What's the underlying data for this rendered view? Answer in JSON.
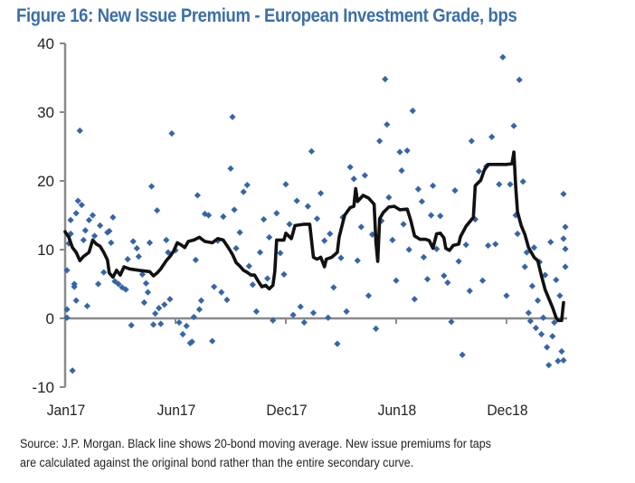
{
  "chart_data": {
    "type": "scatter",
    "title": "Figure 16: New Issue Premium - European Investment Grade, bps",
    "xlabel": "",
    "ylabel": "",
    "x_units": "months since Jan17",
    "xlim": [
      0,
      27.2
    ],
    "ylim": [
      -10,
      40
    ],
    "yticks": [
      -10,
      0,
      10,
      20,
      30,
      40
    ],
    "xticks": [
      {
        "value": 0,
        "label": "Jan17"
      },
      {
        "value": 6,
        "label": "Jun17"
      },
      {
        "value": 12,
        "label": "Dec17"
      },
      {
        "value": 18,
        "label": "Jun18"
      },
      {
        "value": 24,
        "label": "Dec18"
      }
    ],
    "grid": false,
    "legend": "none",
    "series": [
      {
        "name": "New issue premium",
        "kind": "scatter",
        "marker": "diamond",
        "color": "#3565a8",
        "points": [
          [
            0.1,
            0.1
          ],
          [
            0.1,
            1.3
          ],
          [
            0.1,
            7.0
          ],
          [
            0.2,
            10.9
          ],
          [
            0.3,
            12.3
          ],
          [
            0.3,
            14.3
          ],
          [
            0.4,
            -7.6
          ],
          [
            0.5,
            4.6
          ],
          [
            0.5,
            5.0
          ],
          [
            0.6,
            2.6
          ],
          [
            0.6,
            15.3
          ],
          [
            0.7,
            17.1
          ],
          [
            0.8,
            27.3
          ],
          [
            0.9,
            16.5
          ],
          [
            1.0,
            11.4
          ],
          [
            1.1,
            12.8
          ],
          [
            1.2,
            1.8
          ],
          [
            1.3,
            14.3
          ],
          [
            1.5,
            15.0
          ],
          [
            1.6,
            12.0
          ],
          [
            1.8,
            5.0
          ],
          [
            1.9,
            13.5
          ],
          [
            2.1,
            6.7
          ],
          [
            2.3,
            12.5
          ],
          [
            2.4,
            12.7
          ],
          [
            2.5,
            11.0
          ],
          [
            2.6,
            14.7
          ],
          [
            2.7,
            5.4
          ],
          [
            2.9,
            5.0
          ],
          [
            3.1,
            4.5
          ],
          [
            3.3,
            4.2
          ],
          [
            3.4,
            8.6
          ],
          [
            3.6,
            -1.0
          ],
          [
            3.7,
            11.2
          ],
          [
            3.9,
            10.2
          ],
          [
            4.0,
            9.0
          ],
          [
            4.2,
            6.4
          ],
          [
            4.3,
            2.3
          ],
          [
            4.4,
            5.1
          ],
          [
            4.5,
            3.8
          ],
          [
            4.6,
            11.0
          ],
          [
            4.7,
            19.2
          ],
          [
            4.8,
            -0.9
          ],
          [
            4.9,
            0.7
          ],
          [
            5.0,
            15.7
          ],
          [
            5.1,
            1.5
          ],
          [
            5.2,
            -0.8
          ],
          [
            5.4,
            2.0
          ],
          [
            5.5,
            11.4
          ],
          [
            5.6,
            9.6
          ],
          [
            5.7,
            2.8
          ],
          [
            5.8,
            26.9
          ],
          [
            6.0,
            9.9
          ],
          [
            6.2,
            -0.6
          ],
          [
            6.4,
            -2.3
          ],
          [
            6.6,
            -1.1
          ],
          [
            6.8,
            -3.6
          ],
          [
            6.9,
            -3.4
          ],
          [
            7.0,
            0.2
          ],
          [
            7.1,
            8.5
          ],
          [
            7.2,
            17.9
          ],
          [
            7.3,
            1.3
          ],
          [
            7.4,
            2.6
          ],
          [
            7.6,
            15.2
          ],
          [
            7.8,
            15.0
          ],
          [
            8.0,
            -3.3
          ],
          [
            8.1,
            4.6
          ],
          [
            8.3,
            11.3
          ],
          [
            8.5,
            3.8
          ],
          [
            8.6,
            14.8
          ],
          [
            8.8,
            2.7
          ],
          [
            9.0,
            21.8
          ],
          [
            9.1,
            29.3
          ],
          [
            9.2,
            15.8
          ],
          [
            9.3,
            10.2
          ],
          [
            9.5,
            12.5
          ],
          [
            9.7,
            18.4
          ],
          [
            9.9,
            19.4
          ],
          [
            10.0,
            7.6
          ],
          [
            10.2,
            4.9
          ],
          [
            10.4,
            1.0
          ],
          [
            10.6,
            9.6
          ],
          [
            10.8,
            14.4
          ],
          [
            11.0,
            5.8
          ],
          [
            11.1,
            11.8
          ],
          [
            11.3,
            -0.3
          ],
          [
            11.5,
            15.3
          ],
          [
            11.7,
            9.5
          ],
          [
            11.9,
            6.4
          ],
          [
            12.0,
            19.5
          ],
          [
            12.2,
            13.7
          ],
          [
            12.4,
            0.5
          ],
          [
            12.6,
            17.1
          ],
          [
            12.8,
            1.7
          ],
          [
            13.0,
            -0.6
          ],
          [
            13.2,
            16.3
          ],
          [
            13.4,
            24.3
          ],
          [
            13.5,
            0.8
          ],
          [
            13.7,
            14.5
          ],
          [
            13.9,
            18.2
          ],
          [
            14.1,
            11.3
          ],
          [
            14.3,
            0.1
          ],
          [
            14.4,
            12.3
          ],
          [
            14.6,
            4.5
          ],
          [
            14.8,
            -3.7
          ],
          [
            15.0,
            8.8
          ],
          [
            15.1,
            14.7
          ],
          [
            15.3,
            1.0
          ],
          [
            15.5,
            22.0
          ],
          [
            15.7,
            20.3
          ],
          [
            15.9,
            8.4
          ],
          [
            16.1,
            13.3
          ],
          [
            16.3,
            20.8
          ],
          [
            16.5,
            3.3
          ],
          [
            16.7,
            12.2
          ],
          [
            16.9,
            -1.5
          ],
          [
            17.1,
            25.8
          ],
          [
            17.2,
            14.2
          ],
          [
            17.4,
            34.8
          ],
          [
            17.5,
            28.2
          ],
          [
            17.6,
            17.6
          ],
          [
            17.8,
            11.4
          ],
          [
            18.0,
            5.5
          ],
          [
            18.2,
            24.2
          ],
          [
            18.3,
            21.5
          ],
          [
            18.4,
            13.7
          ],
          [
            18.6,
            24.4
          ],
          [
            18.7,
            10.0
          ],
          [
            18.9,
            30.2
          ],
          [
            19.0,
            2.8
          ],
          [
            19.2,
            18.8
          ],
          [
            19.4,
            17.0
          ],
          [
            19.5,
            8.9
          ],
          [
            19.7,
            5.7
          ],
          [
            19.9,
            15.0
          ],
          [
            20.0,
            19.3
          ],
          [
            20.2,
            10.1
          ],
          [
            20.4,
            14.9
          ],
          [
            20.6,
            6.2
          ],
          [
            20.8,
            5.2
          ],
          [
            21.0,
            -0.5
          ],
          [
            21.2,
            18.6
          ],
          [
            21.4,
            8.3
          ],
          [
            21.6,
            -5.3
          ],
          [
            21.8,
            10.7
          ],
          [
            22.0,
            4.0
          ],
          [
            22.1,
            25.8
          ],
          [
            22.3,
            14.4
          ],
          [
            22.5,
            21.4
          ],
          [
            22.7,
            5.5
          ],
          [
            22.9,
            22.1
          ],
          [
            23.0,
            10.6
          ],
          [
            23.2,
            26.4
          ],
          [
            23.4,
            10.8
          ],
          [
            23.6,
            19.5
          ],
          [
            23.8,
            38.0
          ],
          [
            24.0,
            3.3
          ],
          [
            24.2,
            19.5
          ],
          [
            24.4,
            28.0
          ],
          [
            24.5,
            15.0
          ],
          [
            24.6,
            12.3
          ],
          [
            24.7,
            34.7
          ],
          [
            24.9,
            19.9
          ],
          [
            25.0,
            7.5
          ],
          [
            25.1,
            9.6
          ],
          [
            25.2,
            0.8
          ],
          [
            25.3,
            -0.4
          ],
          [
            25.4,
            4.7
          ],
          [
            25.5,
            10.3
          ],
          [
            25.6,
            -1.4
          ],
          [
            25.7,
            2.6
          ],
          [
            25.8,
            8.2
          ],
          [
            25.9,
            -2.3
          ],
          [
            26.0,
            0.1
          ],
          [
            26.1,
            6.3
          ],
          [
            26.2,
            -4.2
          ],
          [
            26.3,
            -6.8
          ],
          [
            26.4,
            11.1
          ],
          [
            26.5,
            -2.6
          ],
          [
            26.6,
            -0.6
          ],
          [
            26.7,
            5.6
          ],
          [
            26.8,
            -6.2
          ],
          [
            26.9,
            3.3
          ],
          [
            27.0,
            -4.8
          ],
          [
            27.1,
            18.1
          ],
          [
            27.2,
            13.3
          ],
          [
            27.2,
            10.1
          ],
          [
            27.1,
            11.6
          ],
          [
            27.2,
            7.5
          ],
          [
            27.1,
            -6.1
          ]
        ]
      },
      {
        "name": "20-bond moving average",
        "kind": "line",
        "color": "#111111",
        "points": [
          [
            0.0,
            12.6
          ],
          [
            0.2,
            11.8
          ],
          [
            0.4,
            10.3
          ],
          [
            0.6,
            9.6
          ],
          [
            0.8,
            8.4
          ],
          [
            1.0,
            9.0
          ],
          [
            1.3,
            9.6
          ],
          [
            1.5,
            11.4
          ],
          [
            1.7,
            10.8
          ],
          [
            1.9,
            10.5
          ],
          [
            2.1,
            9.6
          ],
          [
            2.3,
            8.5
          ],
          [
            2.4,
            6.6
          ],
          [
            2.6,
            6.0
          ],
          [
            2.8,
            7.0
          ],
          [
            3.0,
            6.3
          ],
          [
            3.2,
            7.5
          ],
          [
            3.5,
            7.2
          ],
          [
            4.0,
            7.0
          ],
          [
            4.6,
            6.8
          ],
          [
            4.8,
            6.2
          ],
          [
            5.0,
            6.6
          ],
          [
            5.2,
            7.2
          ],
          [
            5.5,
            8.4
          ],
          [
            5.7,
            9.0
          ],
          [
            5.9,
            9.8
          ],
          [
            6.1,
            11.0
          ],
          [
            6.3,
            10.7
          ],
          [
            6.5,
            10.3
          ],
          [
            6.7,
            11.2
          ],
          [
            7.0,
            11.4
          ],
          [
            7.3,
            11.8
          ],
          [
            7.6,
            11.2
          ],
          [
            8.0,
            11.0
          ],
          [
            8.3,
            11.6
          ],
          [
            8.6,
            11.4
          ],
          [
            8.9,
            10.2
          ],
          [
            9.1,
            9.3
          ],
          [
            9.3,
            8.1
          ],
          [
            9.5,
            7.6
          ],
          [
            9.7,
            7.0
          ],
          [
            9.9,
            6.7
          ],
          [
            10.1,
            6.3
          ],
          [
            10.3,
            6.3
          ],
          [
            10.5,
            5.4
          ],
          [
            10.7,
            4.6
          ],
          [
            10.9,
            4.8
          ],
          [
            11.1,
            4.3
          ],
          [
            11.3,
            4.8
          ],
          [
            11.4,
            6.8
          ],
          [
            11.5,
            11.4
          ],
          [
            11.9,
            11.4
          ],
          [
            12.0,
            12.4
          ],
          [
            12.3,
            11.6
          ],
          [
            12.5,
            13.5
          ],
          [
            13.0,
            13.7
          ],
          [
            13.3,
            13.7
          ],
          [
            13.5,
            8.9
          ],
          [
            13.7,
            8.6
          ],
          [
            13.9,
            8.9
          ],
          [
            14.1,
            7.5
          ],
          [
            14.2,
            8.6
          ],
          [
            14.5,
            8.9
          ],
          [
            14.8,
            9.6
          ],
          [
            14.9,
            11.8
          ],
          [
            15.2,
            15.0
          ],
          [
            15.5,
            16.1
          ],
          [
            15.7,
            16.3
          ],
          [
            15.8,
            18.9
          ],
          [
            15.9,
            17.0
          ],
          [
            16.2,
            17.9
          ],
          [
            16.5,
            17.5
          ],
          [
            16.8,
            16.6
          ],
          [
            16.9,
            11.1
          ],
          [
            17.0,
            8.3
          ],
          [
            17.1,
            14.5
          ],
          [
            17.3,
            15.4
          ],
          [
            17.6,
            16.2
          ],
          [
            17.9,
            16.3
          ],
          [
            18.2,
            15.8
          ],
          [
            18.6,
            15.9
          ],
          [
            18.8,
            14.2
          ],
          [
            19.0,
            12.0
          ],
          [
            19.3,
            11.5
          ],
          [
            19.6,
            11.5
          ],
          [
            19.8,
            11.3
          ],
          [
            20.0,
            10.2
          ],
          [
            20.2,
            12.3
          ],
          [
            20.4,
            12.4
          ],
          [
            20.6,
            11.7
          ],
          [
            20.7,
            10.2
          ],
          [
            20.9,
            9.9
          ],
          [
            21.1,
            10.6
          ],
          [
            21.4,
            10.8
          ],
          [
            21.5,
            11.9
          ],
          [
            21.8,
            13.4
          ],
          [
            22.2,
            14.7
          ],
          [
            22.3,
            19.3
          ],
          [
            22.6,
            20.1
          ],
          [
            22.8,
            21.6
          ],
          [
            23.0,
            22.4
          ],
          [
            23.5,
            22.4
          ],
          [
            24.0,
            22.4
          ],
          [
            24.3,
            22.5
          ],
          [
            24.4,
            24.2
          ],
          [
            24.5,
            19.2
          ],
          [
            24.6,
            15.5
          ],
          [
            24.8,
            13.5
          ],
          [
            25.0,
            12.2
          ],
          [
            25.2,
            10.3
          ],
          [
            25.5,
            8.9
          ],
          [
            25.7,
            8.4
          ],
          [
            25.9,
            6.2
          ],
          [
            26.1,
            4.2
          ],
          [
            26.3,
            2.9
          ],
          [
            26.5,
            1.6
          ],
          [
            26.7,
            0.1
          ],
          [
            26.8,
            -0.3
          ],
          [
            27.0,
            -0.3
          ],
          [
            27.1,
            2.3
          ]
        ]
      }
    ]
  },
  "footnote": {
    "line1": "Source: J.P. Morgan. Black line shows 20-bond moving average. New issue premiums for taps",
    "line2": "are calculated against the original bond rather than the entire secondary curve."
  }
}
